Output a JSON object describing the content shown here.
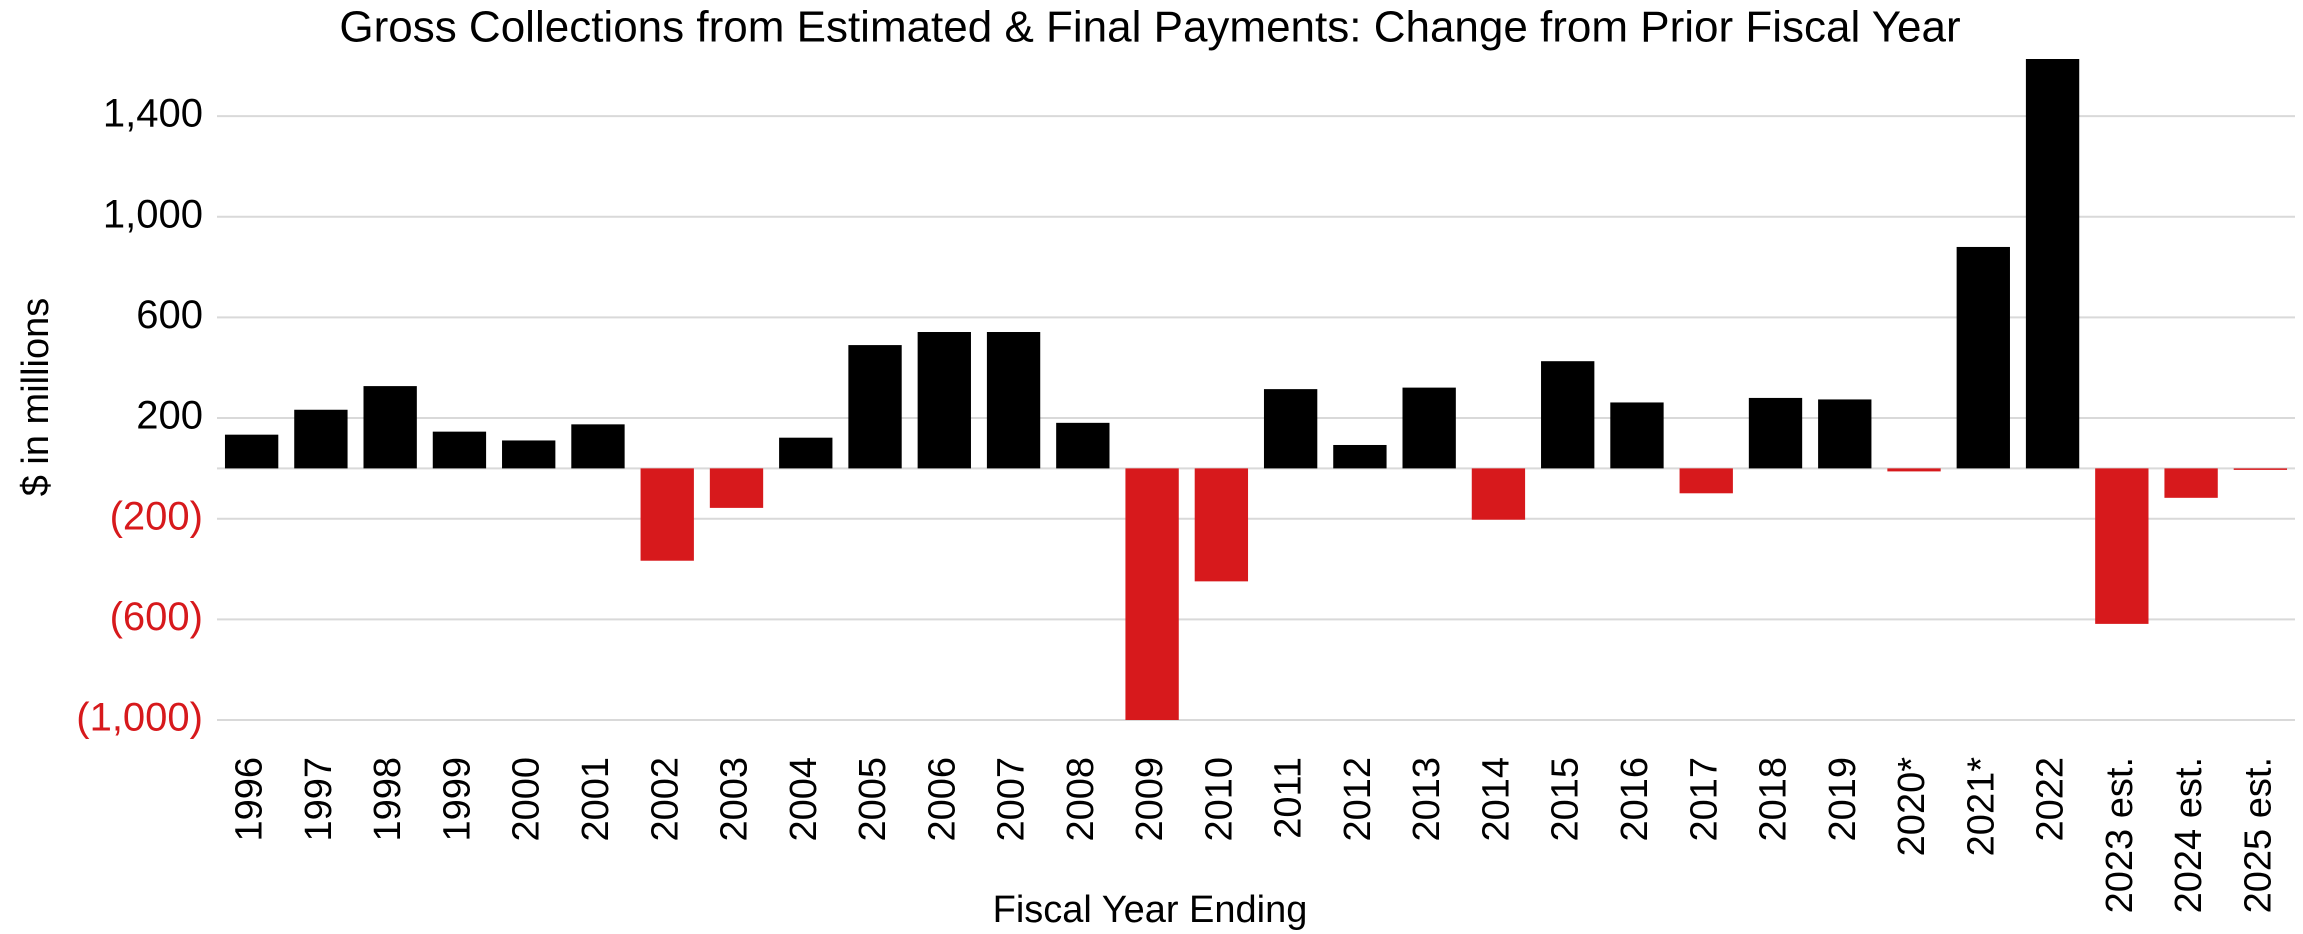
{
  "chart_data": {
    "type": "bar",
    "title": "Gross Collections from Estimated & Final Payments: Change from Prior Fiscal Year",
    "xlabel": "Fiscal Year Ending",
    "ylabel": "$ in millions",
    "categories": [
      "1996",
      "1997",
      "1998",
      "1999",
      "2000",
      "2001",
      "2002",
      "2003",
      "2004",
      "2005",
      "2006",
      "2007",
      "2008",
      "2009",
      "2010",
      "2011",
      "2012",
      "2013",
      "2014",
      "2015",
      "2016",
      "2017",
      "2018",
      "2019",
      "2020*",
      "2021*",
      "2022",
      "2023 est.",
      "2024 est.",
      "2025 est."
    ],
    "values": [
      134,
      233,
      327,
      146,
      111,
      175,
      -367,
      -157,
      122,
      490,
      542,
      542,
      181,
      -1000,
      -449,
      315,
      93,
      321,
      -204,
      426,
      262,
      -99,
      280,
      274,
      -12,
      880,
      1627,
      -618,
      -117,
      -6
    ],
    "color": "#000000",
    "negative_color": "#d7191c",
    "ylim": [
      -1000,
      1627
    ],
    "yticks": [
      {
        "value": -1000,
        "label": "(1,000)"
      },
      {
        "value": -600,
        "label": "(600)"
      },
      {
        "value": -200,
        "label": "(200)"
      },
      200,
      600,
      {
        "value": 1000,
        "label": "1,000"
      },
      {
        "value": 1400,
        "label": "1,400"
      }
    ],
    "grid": true
  }
}
